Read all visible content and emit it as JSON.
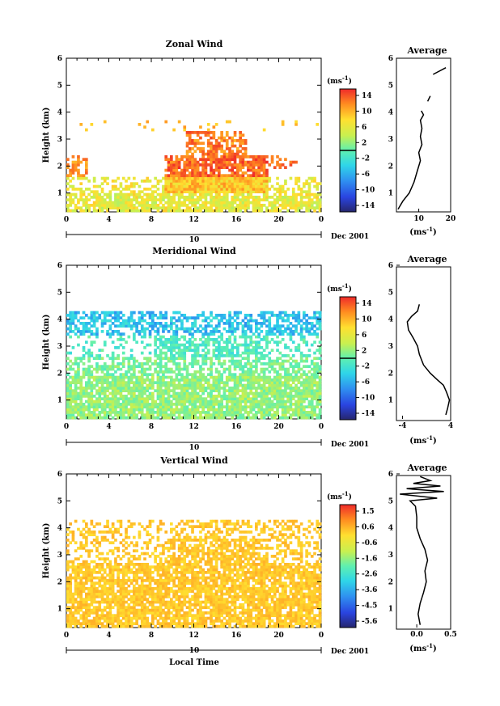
{
  "figure": {
    "x_axis_label": "Local Time",
    "date_label": "Dec 2001",
    "date_day": "10",
    "height_label": "Height (km)",
    "x_ticks": [
      "0",
      "4",
      "8",
      "12",
      "16",
      "20",
      "0"
    ],
    "y_ticks": [
      "1",
      "2",
      "3",
      "4",
      "5",
      "6"
    ]
  },
  "chart_data": [
    {
      "type": "heatmap",
      "title": "Zonal Wind",
      "xlabel": "",
      "ylabel": "Height (km)",
      "xlim": [
        0,
        24
      ],
      "ylim": [
        0.3,
        6
      ],
      "colorbar_label": "(ms-1)",
      "colorbar_ticks": [
        "14",
        "10",
        "6",
        "2",
        "-2",
        "-6",
        "-10",
        "-14"
      ],
      "colorbar_range": [
        -16,
        16
      ],
      "colorbar_marker": 0,
      "typical_values": "mostly 2 to 10 ms-1 below 2 km; 12 to 16 ms-1 between 1.5 and 3 km from 10 to 18 LT"
    },
    {
      "type": "line",
      "title": "Average",
      "xlabel": "(ms-1)",
      "x_ticks": [
        "10",
        "20"
      ],
      "xlim": [
        3,
        20
      ],
      "ylim": [
        0.3,
        6
      ],
      "points": [
        [
          3.5,
          0.4
        ],
        [
          5,
          0.7
        ],
        [
          7,
          1.0
        ],
        [
          8.5,
          1.4
        ],
        [
          9.5,
          1.8
        ],
        [
          10.5,
          2.2
        ],
        [
          10,
          2.5
        ],
        [
          11,
          2.8
        ],
        [
          10.5,
          3.1
        ],
        [
          11,
          3.4
        ],
        [
          10.5,
          3.7
        ],
        [
          11.5,
          3.9
        ],
        [
          10.8,
          4.05
        ]
      ],
      "extra_segments": [
        [
          [
            12.8,
            4.4
          ],
          [
            13.6,
            4.6
          ]
        ],
        [
          [
            14.5,
            5.4
          ],
          [
            18.5,
            5.65
          ]
        ]
      ]
    },
    {
      "type": "heatmap",
      "title": "Meridional Wind",
      "xlabel": "",
      "ylabel": "Height (km)",
      "xlim": [
        0,
        24
      ],
      "ylim": [
        0.3,
        6
      ],
      "colorbar_label": "(ms-1)",
      "colorbar_ticks": [
        "14",
        "10",
        "6",
        "2",
        "-2",
        "-6",
        "-10",
        "-14"
      ],
      "colorbar_range": [
        -16,
        16
      ],
      "colorbar_marker": 0,
      "typical_values": "about -6 ms-1 near 4 km; about -2 ms-1 between 2 and 3.5 km; 0 to 4 ms-1 below 2 km"
    },
    {
      "type": "line",
      "title": "Average",
      "xlabel": "(ms-1)",
      "x_ticks": [
        "-4",
        "4"
      ],
      "xlim": [
        -5,
        4
      ],
      "ylim": [
        0.3,
        6
      ],
      "points": [
        [
          -1.2,
          4.55
        ],
        [
          -1.5,
          4.3
        ],
        [
          -2.5,
          4.1
        ],
        [
          -3.2,
          3.9
        ],
        [
          -3.0,
          3.6
        ],
        [
          -2.2,
          3.3
        ],
        [
          -1.5,
          3.0
        ],
        [
          -1.2,
          2.7
        ],
        [
          -0.5,
          2.3
        ],
        [
          0.6,
          2.0
        ],
        [
          1.8,
          1.75
        ],
        [
          2.8,
          1.55
        ],
        [
          3.3,
          1.3
        ],
        [
          3.8,
          1.0
        ],
        [
          3.5,
          0.7
        ],
        [
          3.2,
          0.45
        ]
      ]
    },
    {
      "type": "heatmap",
      "title": "Vertical Wind",
      "xlabel": "Local Time",
      "ylabel": "Height (km)",
      "xlim": [
        0,
        24
      ],
      "ylim": [
        0.3,
        6
      ],
      "colorbar_label": "(ms-1)",
      "colorbar_ticks": [
        "1.5",
        "0.6",
        "-0.6",
        "-1.6",
        "-2.6",
        "-3.6",
        "-4.5",
        "-5.6"
      ],
      "colorbar_range": [
        -6.0,
        2.0
      ],
      "typical_values": "about 0 to 0.6 ms-1 almost everywhere"
    },
    {
      "type": "line",
      "title": "Average",
      "xlabel": "(ms-1)",
      "x_ticks": [
        "0.0",
        "0.5"
      ],
      "xlim": [
        -0.3,
        0.5
      ],
      "ylim": [
        0.3,
        6
      ],
      "points": [
        [
          0.05,
          0.4
        ],
        [
          0.02,
          0.8
        ],
        [
          0.05,
          1.2
        ],
        [
          0.1,
          1.6
        ],
        [
          0.14,
          2.0
        ],
        [
          0.12,
          2.4
        ],
        [
          0.16,
          2.8
        ],
        [
          0.12,
          3.2
        ],
        [
          0.05,
          3.6
        ],
        [
          0.0,
          4.0
        ],
        [
          0.0,
          4.4
        ],
        [
          -0.02,
          4.8
        ],
        [
          -0.1,
          5.0
        ],
        [
          0.3,
          5.1
        ],
        [
          -0.25,
          5.25
        ],
        [
          0.4,
          5.35
        ],
        [
          -0.15,
          5.45
        ],
        [
          0.35,
          5.55
        ],
        [
          -0.05,
          5.65
        ],
        [
          0.2,
          5.75
        ],
        [
          0.05,
          5.9
        ]
      ]
    }
  ]
}
